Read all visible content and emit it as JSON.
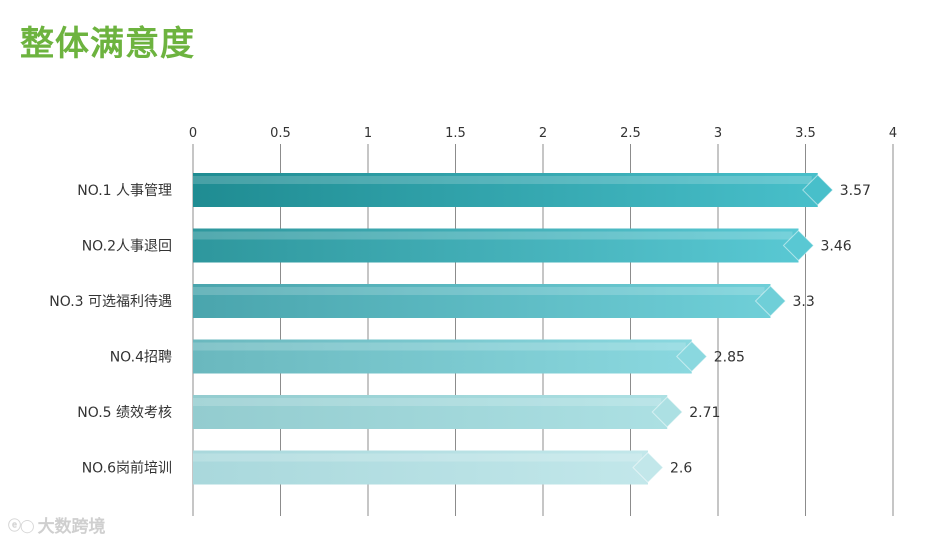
{
  "title": "整体满意度",
  "watermark": "大数跨境",
  "chart_data": {
    "type": "bar",
    "orientation": "horizontal",
    "title": "整体满意度",
    "categories": [
      "NO.1 人事管理",
      "NO.2人事退回",
      "NO.3 可选福利待遇",
      "NO.4招聘",
      "NO.5 绩效考核",
      "NO.6岗前培训"
    ],
    "values": [
      3.57,
      3.46,
      3.3,
      2.85,
      2.71,
      2.6
    ],
    "value_labels": [
      "3.57",
      "3.46",
      "3.3",
      "2.85",
      "2.71",
      "2.6"
    ],
    "xlim": [
      0,
      4
    ],
    "xticks": [
      0,
      0.5,
      1,
      1.5,
      2,
      2.5,
      3,
      3.5,
      4
    ],
    "xtick_labels": [
      "0",
      "0.5",
      "1",
      "1.5",
      "2",
      "2.5",
      "3",
      "3.5",
      "4"
    ],
    "grid": true,
    "xlabel": "",
    "ylabel": ""
  },
  "colors": {
    "title": "#6db33f",
    "bars": [
      [
        "#1f8c92",
        "#48bfca"
      ],
      [
        "#2e979d",
        "#59c8d3"
      ],
      [
        "#4aa5ad",
        "#6fcfd8"
      ],
      [
        "#6ab8be",
        "#8ad8df"
      ],
      [
        "#93cccf",
        "#ace0e3"
      ],
      [
        "#a9d8dc",
        "#c2e7ea"
      ]
    ],
    "grid": "#8c8c8c",
    "text": "#333333"
  }
}
